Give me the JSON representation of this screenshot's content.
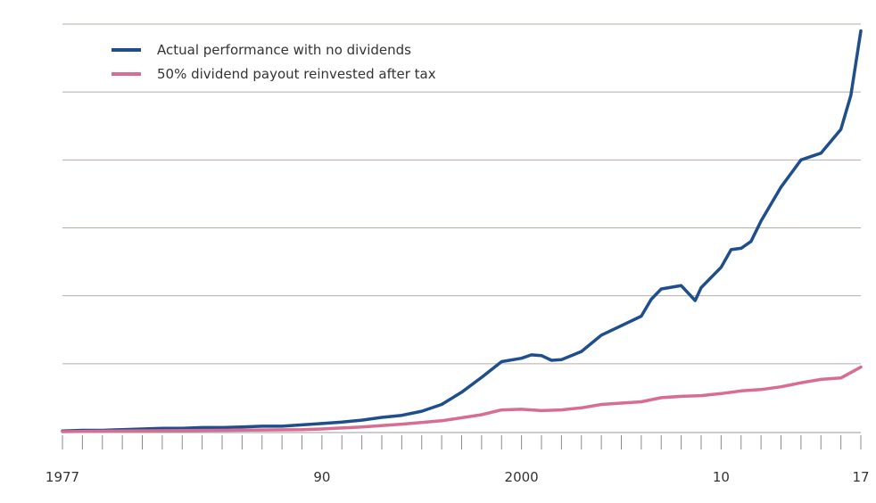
{
  "chart_data": {
    "type": "line",
    "title": "",
    "xlabel": "",
    "ylabel": "",
    "xlim": [
      1977,
      2017
    ],
    "ylim": [
      0,
      6
    ],
    "grid": true,
    "legend_position": "top-left",
    "x_tick_labels": [
      {
        "x": 1977,
        "label": "1977"
      },
      {
        "x": 1990,
        "label": "90"
      },
      {
        "x": 2000,
        "label": "2000"
      },
      {
        "x": 2010,
        "label": "10"
      },
      {
        "x": 2017,
        "label": "17"
      }
    ],
    "series": [
      {
        "name": "Actual performance with no dividends",
        "color": "#1f4e8c",
        "points": [
          [
            1977,
            0.01
          ],
          [
            1978,
            0.02
          ],
          [
            1979,
            0.02
          ],
          [
            1980,
            0.03
          ],
          [
            1981,
            0.04
          ],
          [
            1982,
            0.05
          ],
          [
            1983,
            0.05
          ],
          [
            1984,
            0.06
          ],
          [
            1985,
            0.06
          ],
          [
            1986,
            0.07
          ],
          [
            1987,
            0.08
          ],
          [
            1988,
            0.08
          ],
          [
            1989,
            0.1
          ],
          [
            1990,
            0.12
          ],
          [
            1991,
            0.14
          ],
          [
            1992,
            0.17
          ],
          [
            1993,
            0.21
          ],
          [
            1994,
            0.24
          ],
          [
            1995,
            0.3
          ],
          [
            1996,
            0.4
          ],
          [
            1997,
            0.58
          ],
          [
            1998,
            0.8
          ],
          [
            1999,
            1.03
          ],
          [
            2000,
            1.08
          ],
          [
            2000.5,
            1.13
          ],
          [
            2001,
            1.12
          ],
          [
            2001.5,
            1.05
          ],
          [
            2002,
            1.06
          ],
          [
            2003,
            1.18
          ],
          [
            2004,
            1.42
          ],
          [
            2005,
            1.56
          ],
          [
            2006,
            1.7
          ],
          [
            2006.5,
            1.95
          ],
          [
            2007,
            2.1
          ],
          [
            2008,
            2.15
          ],
          [
            2008.7,
            1.93
          ],
          [
            2009,
            2.12
          ],
          [
            2010,
            2.42
          ],
          [
            2010.5,
            2.68
          ],
          [
            2011,
            2.7
          ],
          [
            2011.5,
            2.8
          ],
          [
            2012,
            3.1
          ],
          [
            2013,
            3.6
          ],
          [
            2014,
            4.0
          ],
          [
            2015,
            4.1
          ],
          [
            2016,
            4.45
          ],
          [
            2016.5,
            4.95
          ],
          [
            2017,
            5.9
          ]
        ]
      },
      {
        "name": "50% dividend payout reinvested after tax",
        "color": "#d96c93",
        "points": [
          [
            1977,
            0.0
          ],
          [
            1980,
            0.01
          ],
          [
            1985,
            0.02
          ],
          [
            1989,
            0.03
          ],
          [
            1990,
            0.04
          ],
          [
            1992,
            0.07
          ],
          [
            1994,
            0.11
          ],
          [
            1996,
            0.16
          ],
          [
            1998,
            0.25
          ],
          [
            1999,
            0.32
          ],
          [
            2000,
            0.33
          ],
          [
            2001,
            0.31
          ],
          [
            2002,
            0.32
          ],
          [
            2003,
            0.35
          ],
          [
            2004,
            0.4
          ],
          [
            2005,
            0.42
          ],
          [
            2006,
            0.44
          ],
          [
            2007,
            0.5
          ],
          [
            2008,
            0.52
          ],
          [
            2009,
            0.53
          ],
          [
            2010,
            0.56
          ],
          [
            2011,
            0.6
          ],
          [
            2012,
            0.62
          ],
          [
            2013,
            0.66
          ],
          [
            2014,
            0.72
          ],
          [
            2015,
            0.77
          ],
          [
            2016,
            0.79
          ],
          [
            2017,
            0.95
          ]
        ]
      }
    ]
  }
}
